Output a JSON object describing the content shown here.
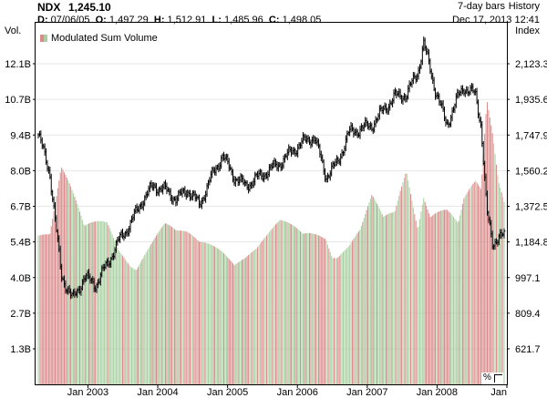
{
  "header": {
    "symbol": "NDX",
    "last": "1,245.10",
    "ohlc": [
      {
        "key": "D:",
        "value": "07/06/05"
      },
      {
        "key": "O:",
        "value": "1,497.29"
      },
      {
        "key": "H:",
        "value": "1,512.91"
      },
      {
        "key": "L:",
        "value": "1,485.96"
      },
      {
        "key": "C:",
        "value": "1,498.05"
      }
    ],
    "bar_mode": "7-day bars",
    "history": "History",
    "timestamp": "Dec 17, 2013 12:41"
  },
  "axis_titles": {
    "left": "Vol.",
    "right": "Index"
  },
  "legend": {
    "label": "Modulated Sum Volume"
  },
  "pct_toggle": "%",
  "colors": {
    "price": "#000000",
    "vol_up": "#a8d0a0",
    "vol_down": "#d98a8a",
    "grid": "#e6e6e6",
    "frame": "#000000"
  },
  "chart_data": {
    "type": "bar",
    "title": "",
    "date_range": [
      "2002-04",
      "2009-01"
    ],
    "price_series": {
      "name": "NDX",
      "x": [
        "2002-04",
        "2002-06",
        "2002-08",
        "2002-10",
        "2002-12",
        "2003-02",
        "2003-04",
        "2003-06",
        "2003-08",
        "2003-10",
        "2003-12",
        "2004-02",
        "2004-04",
        "2004-06",
        "2004-08",
        "2004-10",
        "2004-12",
        "2005-02",
        "2005-04",
        "2005-06",
        "2005-08",
        "2005-10",
        "2005-12",
        "2006-02",
        "2006-04",
        "2006-06",
        "2006-08",
        "2006-10",
        "2006-12",
        "2007-02",
        "2007-04",
        "2007-06",
        "2007-08",
        "2007-10",
        "2007-11",
        "2008-01",
        "2008-03",
        "2008-05",
        "2008-06",
        "2008-08",
        "2008-09",
        "2008-10",
        "2008-11",
        "2008-12",
        "2009-01"
      ],
      "values": [
        1750,
        1550,
        1010,
        880,
        1000,
        960,
        1070,
        1190,
        1280,
        1400,
        1480,
        1460,
        1410,
        1460,
        1380,
        1520,
        1640,
        1530,
        1480,
        1520,
        1560,
        1600,
        1660,
        1710,
        1740,
        1530,
        1600,
        1760,
        1780,
        1800,
        1880,
        1950,
        1960,
        2080,
        2230,
        1990,
        1800,
        1950,
        2000,
        1960,
        1800,
        1340,
        1170,
        1220,
        1210
      ]
    },
    "volume_series": {
      "name": "Modulated Sum Volume",
      "x": [
        "2002-04",
        "2002-06",
        "2002-08",
        "2002-10",
        "2002-12",
        "2003-02",
        "2003-04",
        "2003-06",
        "2003-08",
        "2003-10",
        "2003-12",
        "2004-02",
        "2004-04",
        "2004-06",
        "2004-08",
        "2004-10",
        "2004-12",
        "2005-02",
        "2005-04",
        "2005-06",
        "2005-08",
        "2005-10",
        "2005-12",
        "2006-02",
        "2006-04",
        "2006-06",
        "2006-08",
        "2006-10",
        "2006-12",
        "2007-02",
        "2007-04",
        "2007-06",
        "2007-08",
        "2007-10",
        "2007-11",
        "2008-01",
        "2008-03",
        "2008-05",
        "2008-06",
        "2008-08",
        "2008-09",
        "2008-10",
        "2008-11",
        "2008-12",
        "2009-01"
      ],
      "values_billions": [
        6.6,
        5.9,
        7.8,
        6.5,
        5.2,
        5.4,
        5.6,
        5.0,
        4.9,
        5.2,
        5.4,
        5.6,
        5.1,
        5.0,
        4.8,
        5.0,
        5.2,
        5.3,
        5.0,
        4.9,
        5.1,
        5.4,
        5.3,
        5.2,
        5.6,
        6.0,
        5.3,
        5.2,
        5.4,
        6.3,
        5.5,
        5.8,
        7.6,
        6.0,
        7.7,
        7.2,
        6.6,
        5.6,
        6.3,
        6.7,
        6.4,
        9.4,
        8.4,
        7.0,
        6.5
      ]
    },
    "x_tick_labels": [
      "Jan 2003",
      "Jan 2004",
      "Jan 2005",
      "Jan 2006",
      "Jan 2007",
      "Jan 2008",
      "Jan"
    ],
    "left_axis": {
      "label": "Vol.",
      "ticks": [
        "1.3B",
        "2.7B",
        "4.0B",
        "5.4B",
        "6.7B",
        "8.0B",
        "9.4B",
        "10.7B",
        "12.1B"
      ],
      "ylim_billions": [
        0,
        13.5
      ]
    },
    "right_axis": {
      "label": "Index",
      "ticks": [
        "621.7",
        "809.4",
        "997.1",
        "1,184.8",
        "1,372.5",
        "1,560.2",
        "1,747.9",
        "1,935.6",
        "2,123.3"
      ]
    },
    "grid": true,
    "legend_position": "top-left"
  }
}
